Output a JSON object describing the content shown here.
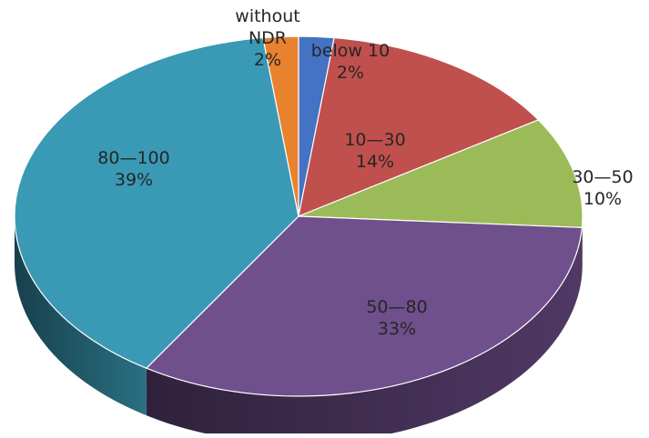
{
  "chart_data": {
    "type": "pie",
    "title": "",
    "style": "3d-pie",
    "slices": [
      {
        "category": "below 10",
        "value": 2,
        "label": "below 10",
        "percent_label": "2%",
        "color": "#4472C4"
      },
      {
        "category": "10—30",
        "value": 14,
        "label": "10—30",
        "percent_label": "14%",
        "color": "#C0504D"
      },
      {
        "category": "30—50",
        "value": 10,
        "label": "30—50",
        "percent_label": "10%",
        "color": "#9BBB59"
      },
      {
        "category": "50—80",
        "value": 33,
        "label": "50—80",
        "percent_label": "33%",
        "color": "#6F4F8C"
      },
      {
        "category": "80—100",
        "value": 39,
        "label": "80—100",
        "percent_label": "39%",
        "color": "#3A9AB5"
      },
      {
        "category": "without NDR",
        "value": 2,
        "label": "without NDR",
        "percent_label": "2%",
        "color": "#E8822E"
      }
    ],
    "legend": "none"
  }
}
